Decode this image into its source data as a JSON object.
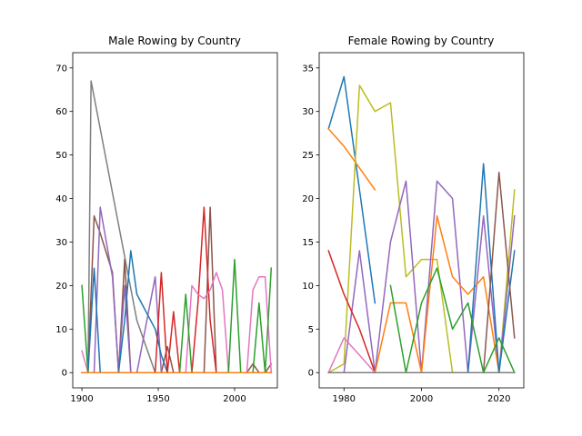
{
  "palette": [
    "#1f77b4",
    "#ff7f0e",
    "#2ca02c",
    "#d62728",
    "#9467bd",
    "#8c564b",
    "#e377c2",
    "#7f7f7f",
    "#bcbd22",
    "#17becf"
  ],
  "chart_data": [
    {
      "type": "line",
      "title": "Male Rowing by Country",
      "xlim": [
        1894,
        2028
      ],
      "ylim": [
        -3.5,
        73.5
      ],
      "xticks": [
        1900,
        1950,
        2000
      ],
      "yticks": [
        0,
        10,
        20,
        30,
        40,
        50,
        60,
        70
      ],
      "grid": false,
      "series": [
        {
          "color": "#7f7f7f",
          "x": [
            1900,
            1904,
            1906,
            1936,
            1948,
            1952,
            1956,
            1960,
            1964,
            1968,
            1972,
            1976,
            1980,
            1984,
            1988,
            1992,
            1996,
            2000,
            2004,
            2008,
            2012,
            2016,
            2020,
            2024
          ],
          "y": [
            0,
            0,
            67,
            12,
            0,
            0,
            0,
            0,
            0,
            0,
            0,
            0,
            0,
            0,
            0,
            0,
            0,
            0,
            0,
            0,
            0,
            0,
            0,
            0
          ]
        },
        {
          "color": "#8c564b",
          "x": [
            1900,
            1904,
            1908,
            1912,
            1920,
            1924,
            1928,
            1932,
            1936,
            1948,
            1952,
            1956,
            1960,
            1964,
            1968,
            1972,
            1976,
            1980,
            1984,
            1988,
            1992,
            1996,
            2000,
            2004,
            2008,
            2012,
            2016,
            2020,
            2024
          ],
          "y": [
            0,
            0,
            36,
            32,
            23,
            0,
            26,
            0,
            0,
            0,
            0,
            6,
            0,
            0,
            0,
            0,
            0,
            0,
            38,
            0,
            0,
            0,
            0,
            0,
            0,
            2,
            0,
            0,
            2
          ]
        },
        {
          "color": "#9467bd",
          "x": [
            1900,
            1904,
            1908,
            1912,
            1920,
            1924,
            1928,
            1932,
            1936,
            1948,
            1952,
            1956,
            1960,
            1964,
            1968,
            1972,
            1976,
            1980,
            1984,
            1988,
            1992,
            1996,
            2000,
            2004,
            2008,
            2012,
            2016,
            2020,
            2024
          ],
          "y": [
            0,
            0,
            0,
            38,
            22,
            0,
            20,
            0,
            0,
            22,
            0,
            0,
            0,
            0,
            0,
            0,
            0,
            0,
            0,
            0,
            0,
            0,
            0,
            0,
            0,
            0,
            0,
            0,
            0
          ]
        },
        {
          "color": "#1f77b4",
          "x": [
            1900,
            1904,
            1908,
            1912,
            1920,
            1924,
            1928,
            1932,
            1936,
            1948,
            1952,
            1956,
            1960,
            1964,
            1968,
            1972,
            1976,
            1980,
            1984,
            1988,
            1992,
            1996,
            2000,
            2004,
            2008,
            2012,
            2016,
            2020,
            2024
          ],
          "y": [
            0,
            0,
            24,
            0,
            0,
            0,
            12,
            28,
            18,
            10,
            4,
            0,
            0,
            0,
            0,
            0,
            0,
            0,
            0,
            0,
            0,
            0,
            0,
            0,
            0,
            0,
            0,
            0,
            0
          ]
        },
        {
          "color": "#d62728",
          "x": [
            1900,
            1904,
            1908,
            1912,
            1920,
            1924,
            1928,
            1932,
            1936,
            1948,
            1952,
            1956,
            1960,
            1964,
            1968,
            1972,
            1976,
            1980,
            1984,
            1988,
            1992,
            1996,
            2000,
            2004,
            2008,
            2012,
            2016,
            2020,
            2024
          ],
          "y": [
            0,
            0,
            0,
            0,
            0,
            0,
            0,
            0,
            0,
            0,
            23,
            0,
            14,
            0,
            0,
            0,
            16,
            38,
            12,
            0,
            0,
            0,
            0,
            0,
            0,
            0,
            0,
            0,
            0
          ]
        },
        {
          "color": "#e377c2",
          "x": [
            1900,
            1904,
            1908,
            1912,
            1920,
            1924,
            1928,
            1932,
            1936,
            1948,
            1952,
            1956,
            1960,
            1964,
            1968,
            1972,
            1976,
            1980,
            1984,
            1988,
            1992,
            1996,
            2000,
            2004,
            2008,
            2012,
            2016,
            2020,
            2024
          ],
          "y": [
            5,
            0,
            0,
            0,
            0,
            0,
            0,
            0,
            0,
            0,
            0,
            0,
            0,
            0,
            0,
            20,
            18,
            17,
            19,
            23,
            19,
            0,
            0,
            0,
            0,
            19,
            22,
            22,
            0
          ]
        },
        {
          "color": "#2ca02c",
          "x": [
            1900,
            1904,
            1908,
            1912,
            1920,
            1924,
            1928,
            1932,
            1936,
            1948,
            1952,
            1956,
            1960,
            1964,
            1968,
            1972,
            1976,
            1980,
            1984,
            1988,
            1992,
            1996,
            2000,
            2004,
            2008,
            2012,
            2016,
            2020,
            2024
          ],
          "y": [
            20,
            0,
            0,
            0,
            0,
            0,
            0,
            0,
            0,
            0,
            0,
            0,
            0,
            0,
            18,
            0,
            0,
            0,
            0,
            0,
            0,
            0,
            26,
            0,
            0,
            0,
            16,
            0,
            24
          ]
        },
        {
          "color": "#bcbd22",
          "x": [
            1900,
            1904,
            1908,
            1912,
            1920,
            1924,
            1928,
            1932,
            1936,
            1948,
            1952,
            1956,
            1960,
            1964,
            1968,
            1972,
            1976,
            1980,
            1984,
            1988,
            1992,
            1996,
            2000,
            2004,
            2008,
            2012,
            2016,
            2020,
            2024
          ],
          "y": [
            0,
            0,
            0,
            0,
            0,
            0,
            0,
            0,
            0,
            0,
            0,
            0,
            0,
            0,
            0,
            0,
            0,
            0,
            0,
            0,
            0,
            0,
            0,
            0,
            0,
            0,
            0,
            0,
            0
          ]
        },
        {
          "color": "#17becf",
          "x": [
            1900,
            1904,
            1908,
            1912,
            1920,
            1924,
            1928,
            1932,
            1936,
            1948,
            1952,
            1956,
            1960,
            1964,
            1968,
            1972,
            1976,
            1980,
            1984,
            1988,
            1992,
            1996,
            2000,
            2004,
            2008,
            2012,
            2016,
            2020,
            2024
          ],
          "y": [
            0,
            0,
            0,
            0,
            0,
            0,
            0,
            0,
            0,
            0,
            0,
            0,
            0,
            0,
            0,
            0,
            0,
            0,
            0,
            0,
            0,
            0,
            0,
            0,
            0,
            0,
            0,
            0,
            0
          ]
        },
        {
          "color": "#ff7f0e",
          "x": [
            1900,
            1904,
            1908,
            1912,
            1920,
            1924,
            1928,
            1932,
            1936,
            1948,
            1952,
            1956,
            1960,
            1964,
            1968,
            1972,
            1976,
            1980,
            1984,
            1988,
            1992,
            1996,
            2000,
            2004,
            2008,
            2012,
            2016,
            2020,
            2024
          ],
          "y": [
            0,
            0,
            0,
            0,
            0,
            0,
            0,
            0,
            0,
            0,
            0,
            0,
            0,
            0,
            0,
            0,
            0,
            0,
            0,
            0,
            0,
            0,
            0,
            0,
            0,
            0,
            0,
            0,
            0
          ]
        }
      ]
    },
    {
      "type": "line",
      "title": "Female Rowing by Country",
      "xlim": [
        1973.6,
        2026.4
      ],
      "ylim": [
        -1.75,
        36.75
      ],
      "xticks": [
        1980,
        2000,
        2020
      ],
      "yticks": [
        0,
        5,
        10,
        15,
        20,
        25,
        30,
        35
      ],
      "grid": false,
      "series": [
        {
          "color": "#1f77b4",
          "x": [
            1976,
            1980,
            1984,
            1988
          ],
          "y": [
            28,
            34,
            21,
            8
          ]
        },
        {
          "color": "#ff7f0e",
          "x": [
            1976,
            1980,
            1984,
            1988
          ],
          "y": [
            28,
            26,
            23.5,
            21
          ]
        },
        {
          "color": "#bcbd22",
          "x": [
            1976,
            1980,
            1984,
            1988,
            1992,
            1996,
            2000,
            2004,
            2008,
            2012,
            2016,
            2020,
            2024
          ],
          "y": [
            0,
            1,
            33,
            30,
            31,
            11,
            13,
            13,
            0,
            0,
            0,
            0,
            21
          ]
        },
        {
          "color": "#9467bd",
          "x": [
            1976,
            1980,
            1984,
            1988,
            1992,
            1996,
            2000,
            2004,
            2008,
            2012,
            2016,
            2020,
            2024
          ],
          "y": [
            0,
            0,
            14,
            0,
            15,
            22,
            0,
            22,
            20,
            0,
            18,
            0,
            18
          ]
        },
        {
          "color": "#d62728",
          "x": [
            1976,
            1980,
            1984,
            1988
          ],
          "y": [
            14,
            9,
            5,
            0
          ]
        },
        {
          "color": "#ff7f0e",
          "x": [
            1988,
            1992,
            1996,
            2000,
            2004,
            2008,
            2012,
            2016,
            2020,
            2024
          ],
          "y": [
            0,
            8,
            8,
            0,
            18,
            11,
            9,
            11,
            0,
            0
          ]
        },
        {
          "color": "#1f77b4",
          "x": [
            1988,
            1992,
            1996,
            2000,
            2004,
            2008,
            2012,
            2016,
            2020,
            2024
          ],
          "y": [
            0,
            0,
            0,
            0,
            0,
            0,
            0,
            24,
            0,
            14
          ]
        },
        {
          "color": "#8c564b",
          "x": [
            1988,
            1992,
            1996,
            2000,
            2004,
            2008,
            2012,
            2016,
            2020,
            2024
          ],
          "y": [
            0,
            0,
            0,
            0,
            0,
            0,
            0,
            0,
            23,
            4
          ]
        },
        {
          "color": "#2ca02c",
          "x": [
            1992,
            1996,
            2000,
            2004,
            2008,
            2012,
            2016,
            2020,
            2024
          ],
          "y": [
            10,
            0,
            8,
            12,
            5,
            8,
            0,
            4,
            0
          ]
        },
        {
          "color": "#e377c2",
          "x": [
            1976,
            1980,
            1984,
            1988,
            1992,
            1996,
            2000,
            2004,
            2008,
            2012,
            2016,
            2020,
            2024
          ],
          "y": [
            0,
            4,
            2,
            0,
            0,
            0,
            0,
            0,
            0,
            0,
            0,
            0,
            0
          ]
        },
        {
          "color": "#17becf",
          "x": [
            1976,
            1980,
            1984,
            1988,
            1992,
            1996,
            2000,
            2004,
            2008,
            2012,
            2016,
            2020,
            2024
          ],
          "y": [
            0,
            0,
            0,
            0,
            0,
            0,
            0,
            0,
            0,
            0,
            0,
            0,
            0
          ]
        },
        {
          "color": "#7f7f7f",
          "x": [
            1976,
            1980,
            1984,
            1988,
            1992,
            1996,
            2000,
            2004,
            2008,
            2012,
            2016,
            2020,
            2024
          ],
          "y": [
            0,
            0,
            0,
            0,
            0,
            0,
            0,
            0,
            0,
            0,
            0,
            0,
            0
          ]
        }
      ]
    }
  ]
}
